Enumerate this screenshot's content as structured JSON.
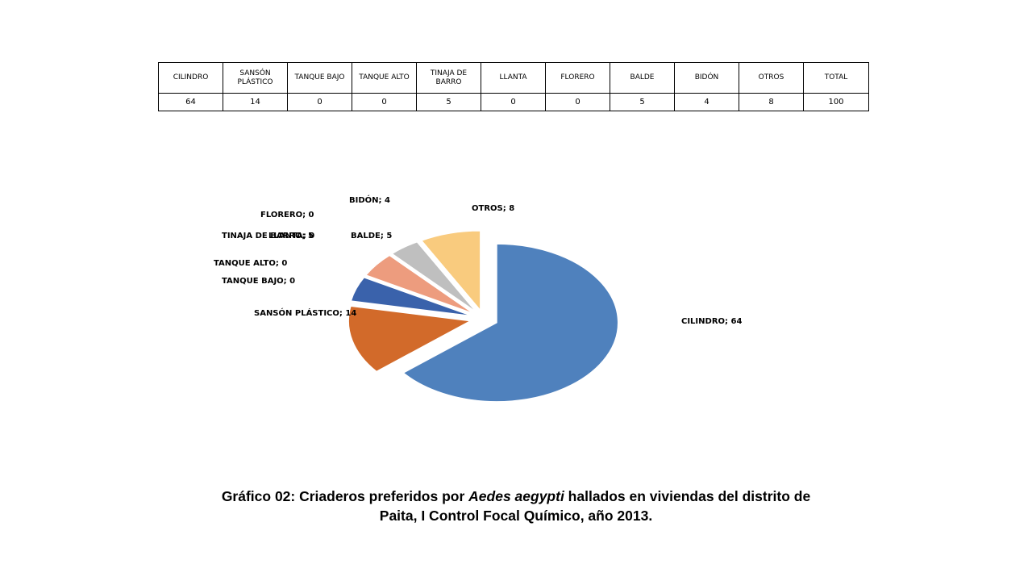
{
  "table": {
    "headers": [
      "CILINDRO",
      "SANSÓN PLÁSTICO",
      "TANQUE BAJO",
      "TANQUE ALTO",
      "TINAJA DE BARRO",
      "LLANTA",
      "FLORERO",
      "BALDE",
      "BIDÓN",
      "OTROS",
      "TOTAL"
    ],
    "values": [
      "64",
      "14",
      "0",
      "0",
      "5",
      "0",
      "0",
      "5",
      "4",
      "8",
      "100"
    ]
  },
  "chart_data": {
    "type": "pie",
    "categories": [
      "CILINDRO",
      "SANSÓN PLÁSTICO",
      "TANQUE BAJO",
      "TANQUE ALTO",
      "TINAJA DE BARRO",
      "LLANTA",
      "FLORERO",
      "BALDE",
      "BIDÓN",
      "OTROS"
    ],
    "values": [
      64,
      14,
      0,
      0,
      5,
      0,
      0,
      5,
      4,
      8
    ],
    "labels": [
      "CILINDRO; 64",
      "SANSÓN PLÁSTICO; 14",
      "TANQUE BAJO; 0",
      "TANQUE ALTO; 0",
      "TINAJA DE BARRO; 5",
      "LLANTA; 0",
      "FLORERO; 0",
      "BALDE; 5",
      "BIDÓN; 4",
      "OTROS; 8"
    ],
    "colors": [
      "#4F81BD",
      "#D26A2A",
      "#6B5A10",
      "#17375E",
      "#3A62AB",
      "#1F3864",
      "#7F5F1F",
      "#ED9C7E",
      "#BFBFBF",
      "#F9CB7E"
    ],
    "exploded": true,
    "style": "3d"
  },
  "caption": {
    "part1": "Gráfico 02: Criaderos preferidos por ",
    "italic": "Aedes aegypti",
    "part2": " hallados en viviendas del distrito de",
    "line2": "Paita, I Control Focal Químico, año 2013."
  }
}
